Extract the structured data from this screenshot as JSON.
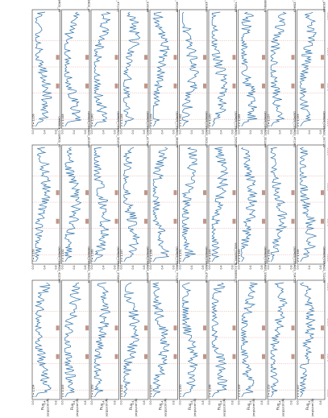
{
  "figure": {
    "axis_label_flux": "Flux",
    "axis_label_flux_units": "(erg/s/cm²/Å)",
    "axis_label_wavelength": "rest-frame wavelength (Å)",
    "x_ticks": [
      "1200",
      "1400",
      "1600",
      "1800"
    ]
  },
  "panels": [
    {
      "id": "CANDELS_COSMOS_30",
      "z": "z = 1.156"
    },
    {
      "id": "CANDELS_COSMOS_47",
      "z": "z = 1.148"
    },
    {
      "id": "DEIMOS_COSMOS_471011",
      "z": "z = 1.140"
    },
    {
      "id": "DEIMOS_COSMOS_516068",
      "z": "z = 1.146"
    },
    {
      "id": "DEIMOS_COSMOS_460008",
      "z": "z = 1.159"
    },
    {
      "id": "DEIMOS_COSMOS_430891",
      "z": "z = 1.162"
    },
    {
      "id": "DEIMOS_COSMOS_706828",
      "z": "z = 1.150"
    },
    {
      "id": "vuds_cosmos_5101288980_4",
      "z": "z = 1.165"
    },
    {
      "id": "DEIMOS_COSMOS_358419",
      "z": "z = 1.157"
    },
    {
      "id": "DEIMOS_COSMOS_450860",
      "z": "z = 1.153"
    },
    {
      "id": "CANDELS_COSMOS_71",
      "z": "z = 1.159"
    },
    {
      "id": "DEIMOS_COSMOS_453505",
      "z": "z = 1.152"
    },
    {
      "id": "DEIMOS_COSMOS_563575",
      "z": "z = 1.160"
    },
    {
      "id": "DEIMOS_COSMOS_417947",
      "z": "z = 1.147"
    },
    {
      "id": "DEIMOS_COSMOS_389879",
      "z": "z = 1.168"
    },
    {
      "id": "DEIMOS_COSMOS_330127",
      "z": "z = 1.151"
    },
    {
      "id": "DEIMOS_COSMOS_556536",
      "z": "z = 1.155"
    },
    {
      "id": "DEIMOS_COSMOS_351469",
      "z": "z = 1.149"
    },
    {
      "id": "DEIMOS_COSMOS_471962",
      "z": "z = 1.161"
    },
    {
      "id": "DEIMOS_COSMOS_397722",
      "z": "z = 1.158"
    },
    {
      "id": "DEIMOS_COSMOS_422080",
      "z": "z = 1.154"
    },
    {
      "id": "DEIMOS_COSMOS_763174",
      "z": "z = 1.145"
    },
    {
      "id": "DEIMOS_COSMOS_376872",
      "z": "z = 1.163"
    },
    {
      "id": "DEIMOS_COSMOS_449695",
      "z": "z = 1.152"
    },
    {
      "id": "DEIMOS_COSMOS_771603",
      "z": "z = 1.157"
    },
    {
      "id": "DEIMOS_COSMOS_476138",
      "z": "z = 1.150"
    },
    {
      "id": "vuds_cosmos_5101288690_1",
      "z": "z = 1.166"
    },
    {
      "id": "DEIMOS_COSMOS_536689",
      "z": "z = 1.149"
    },
    {
      "id": "DEIMOS_COSMOS_724753",
      "z": "z = 1.153"
    },
    {
      "id": "DEIMOS_COSMOS_722676",
      "z": "z = 1.147"
    }
  ],
  "colors": {
    "spectrum": "#2a6fa8",
    "line_marker": "#c0392b",
    "band": "#b07a6a"
  }
}
